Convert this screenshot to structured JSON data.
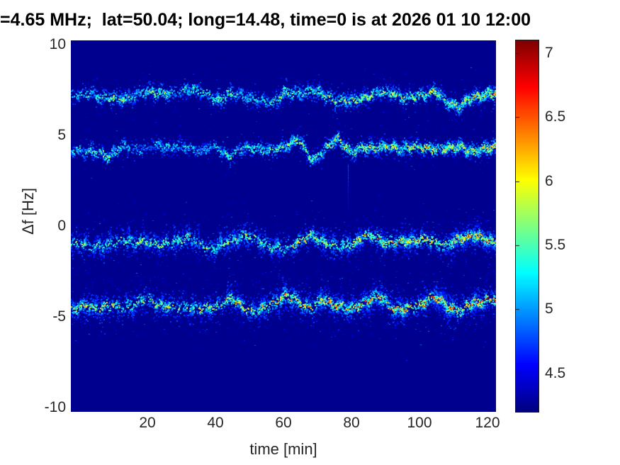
{
  "title": "=4.65 MHz;  lat=50.04; long=14.48, time=0 is at 2026 01 10 12:00",
  "chart_data": {
    "type": "heatmap",
    "title": "=4.65 MHz;  lat=50.04; long=14.48, time=0 is at 2026 01 10 12:00",
    "xlabel": "time [min]",
    "ylabel": "Δf [Hz]",
    "x_ticks": [
      20,
      40,
      60,
      80,
      100,
      120
    ],
    "y_ticks": [
      10,
      5,
      0,
      -5,
      -10
    ],
    "colorbar_ticks": [
      7,
      6.5,
      6,
      5.5,
      5,
      4.5
    ],
    "xlim": [
      -2.5,
      122.5
    ],
    "ylim": [
      -10.25,
      10.25
    ],
    "clim": [
      4.2,
      7.1
    ],
    "colormap": "jet",
    "grid": false,
    "background_value": 4.24,
    "traces": [
      {
        "name": "trace-1-df-7Hz",
        "center_df": 7.3,
        "spread": 0.22,
        "cloud": 0.35,
        "times": [
          -2,
          0,
          4,
          8,
          12,
          16,
          20,
          24,
          28,
          32,
          36,
          40,
          44,
          48,
          52,
          56,
          60,
          64,
          68,
          72,
          76,
          80,
          84,
          88,
          92,
          96,
          100,
          104,
          108,
          112,
          116,
          120,
          122
        ],
        "df": [
          7.3,
          7.25,
          7.3,
          7.1,
          7.0,
          7.25,
          7.4,
          7.5,
          7.2,
          7.7,
          7.4,
          7.0,
          7.3,
          7.3,
          7.0,
          6.8,
          7.4,
          7.3,
          7.6,
          7.2,
          7.0,
          6.9,
          7.2,
          7.35,
          7.45,
          7.0,
          7.3,
          7.45,
          6.9,
          6.65,
          7.2,
          7.35,
          7.3
        ],
        "intensity": [
          0.3,
          0.3,
          0.35,
          0.4,
          0.55,
          0.3,
          0.45,
          0.5,
          0.25,
          0.4,
          0.35,
          0.5,
          0.4,
          0.3,
          0.3,
          0.35,
          0.5,
          0.4,
          0.45,
          0.55,
          0.5,
          0.5,
          0.55,
          0.5,
          0.6,
          0.5,
          0.6,
          0.55,
          0.5,
          0.55,
          0.65,
          0.8,
          0.85
        ]
      },
      {
        "name": "trace-2-df-4Hz",
        "center_df": 4.3,
        "spread": 0.2,
        "cloud": 0.3,
        "times": [
          -2,
          0,
          4,
          8,
          12,
          16,
          20,
          24,
          28,
          32,
          36,
          40,
          44,
          48,
          52,
          56,
          60,
          64,
          68,
          72,
          76,
          80,
          84,
          88,
          92,
          96,
          100,
          104,
          108,
          112,
          116,
          120,
          122
        ],
        "df": [
          4.2,
          4.3,
          4.1,
          3.9,
          4.35,
          4.3,
          4.3,
          4.45,
          4.5,
          4.3,
          4.25,
          4.3,
          3.95,
          4.3,
          4.4,
          4.1,
          4.5,
          4.8,
          3.7,
          4.2,
          4.9,
          4.1,
          4.35,
          4.4,
          4.3,
          4.45,
          4.3,
          4.35,
          4.25,
          4.5,
          4.05,
          4.4,
          4.5
        ],
        "intensity": [
          0.35,
          0.35,
          0.4,
          0.45,
          0.4,
          0.2,
          0.15,
          0.3,
          0.35,
          0.3,
          0.2,
          0.25,
          0.4,
          0.35,
          0.4,
          0.35,
          0.45,
          0.5,
          0.45,
          0.4,
          0.65,
          0.5,
          0.5,
          0.55,
          0.6,
          0.55,
          0.65,
          0.6,
          0.6,
          0.6,
          0.55,
          0.7,
          0.75
        ]
      },
      {
        "name": "trace-3-df-minus1Hz",
        "center_df": -0.85,
        "spread": 0.3,
        "cloud": 0.5,
        "times": [
          -2,
          0,
          4,
          8,
          12,
          16,
          20,
          24,
          28,
          32,
          36,
          40,
          44,
          48,
          52,
          56,
          60,
          64,
          68,
          72,
          76,
          80,
          84,
          88,
          92,
          96,
          100,
          104,
          108,
          112,
          116,
          120,
          122
        ],
        "df": [
          -1.0,
          -0.9,
          -1.05,
          -1.1,
          -0.6,
          -0.95,
          -0.7,
          -1.1,
          -0.75,
          -0.6,
          -1.05,
          -1.2,
          -0.8,
          -0.5,
          -0.75,
          -1.05,
          -1.3,
          -0.85,
          -0.5,
          -0.85,
          -1.2,
          -0.9,
          -0.5,
          -0.7,
          -0.9,
          -0.8,
          -0.7,
          -0.85,
          -1.0,
          -0.7,
          -0.4,
          -0.85,
          -0.9
        ],
        "intensity": [
          0.45,
          0.45,
          0.4,
          0.4,
          0.5,
          0.45,
          0.5,
          0.45,
          0.5,
          0.55,
          0.45,
          0.4,
          0.55,
          0.6,
          0.5,
          0.5,
          0.45,
          0.65,
          0.6,
          0.55,
          0.5,
          0.65,
          0.7,
          0.7,
          0.68,
          0.72,
          0.75,
          0.7,
          0.68,
          0.75,
          0.8,
          0.75,
          0.75
        ]
      },
      {
        "name": "trace-4-df-minus4.5Hz",
        "center_df": -4.3,
        "spread": 0.33,
        "cloud": 0.65,
        "times": [
          -2,
          0,
          4,
          8,
          12,
          16,
          20,
          24,
          28,
          32,
          36,
          40,
          44,
          48,
          52,
          56,
          60,
          64,
          68,
          72,
          76,
          80,
          84,
          88,
          92,
          96,
          100,
          104,
          108,
          112,
          116,
          120,
          122
        ],
        "df": [
          -4.5,
          -4.45,
          -4.5,
          -4.35,
          -4.5,
          -4.2,
          -4.05,
          -4.3,
          -4.5,
          -4.4,
          -4.6,
          -4.35,
          -4.0,
          -4.4,
          -4.75,
          -4.3,
          -3.8,
          -4.15,
          -4.45,
          -4.05,
          -4.35,
          -4.6,
          -4.1,
          -3.9,
          -4.45,
          -4.65,
          -4.25,
          -3.9,
          -4.35,
          -4.65,
          -4.2,
          -4.0,
          -4.1
        ],
        "intensity": [
          0.55,
          0.6,
          0.6,
          0.65,
          0.6,
          0.55,
          0.55,
          0.6,
          0.55,
          0.5,
          0.55,
          0.6,
          0.65,
          0.6,
          0.55,
          0.7,
          0.8,
          0.7,
          0.65,
          0.75,
          0.8,
          0.7,
          0.78,
          0.75,
          0.8,
          0.75,
          0.85,
          0.8,
          0.85,
          0.8,
          0.88,
          0.85,
          0.85
        ]
      }
    ],
    "artifacts": {
      "horizontal_line": {
        "df": 4.28,
        "t_start": -2,
        "t_end": 48,
        "value": 4.8
      },
      "vertical_streak": {
        "t": 79,
        "df_top": 3.5,
        "df_bottom": 0.9,
        "value": 4.95
      }
    }
  }
}
